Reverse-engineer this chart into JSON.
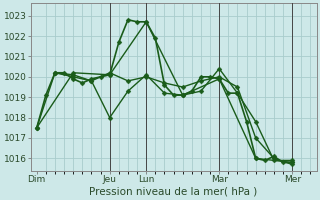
{
  "background_color": "#cde8e8",
  "grid_color": "#a8cccc",
  "line_color": "#1a5c1a",
  "marker_color": "#1a5c1a",
  "xlabel": "Pression niveau de la mer( hPa )",
  "ylim": [
    1015.4,
    1023.6
  ],
  "yticks": [
    1016,
    1017,
    1018,
    1019,
    1020,
    1021,
    1022,
    1023
  ],
  "day_labels": [
    "Dim",
    "Jeu",
    "Lun",
    "Mar",
    "Mer"
  ],
  "day_x": [
    0,
    96,
    144,
    240,
    336
  ],
  "vline_x": [
    96,
    144,
    240,
    336
  ],
  "total_hours": 360,
  "xlim": [
    -8,
    368
  ],
  "lines": [
    {
      "x": [
        0,
        12,
        24,
        36,
        48,
        60,
        72,
        84,
        96,
        108,
        120,
        132,
        144,
        156,
        168,
        180,
        192,
        204,
        216,
        228,
        240,
        252,
        264,
        276,
        288,
        300,
        312,
        324,
        336
      ],
      "y": [
        1017.5,
        1019.1,
        1020.2,
        1020.2,
        1019.9,
        1019.7,
        1019.9,
        1020.0,
        1020.1,
        1021.7,
        1022.8,
        1022.7,
        1022.7,
        1021.9,
        1019.6,
        1019.1,
        1019.1,
        1019.3,
        1020.0,
        1020.0,
        1019.9,
        1019.2,
        1019.2,
        1017.8,
        1016.0,
        1015.9,
        1016.1,
        1015.8,
        1015.8
      ],
      "markersize": 2.5,
      "linewidth": 1.2
    },
    {
      "x": [
        0,
        48,
        96,
        144,
        192,
        240,
        288,
        336
      ],
      "y": [
        1017.5,
        1020.2,
        1020.1,
        1022.7,
        1019.1,
        1019.9,
        1016.0,
        1015.8
      ],
      "markersize": 2.5,
      "linewidth": 1.0
    },
    {
      "x": [
        0,
        24,
        48,
        72,
        96,
        120,
        144,
        168,
        192,
        216,
        240,
        264,
        288,
        312,
        336
      ],
      "y": [
        1017.5,
        1020.2,
        1020.0,
        1019.8,
        1020.2,
        1019.8,
        1020.0,
        1019.7,
        1019.5,
        1019.8,
        1020.0,
        1019.5,
        1017.0,
        1016.0,
        1015.7
      ],
      "markersize": 2.5,
      "linewidth": 1.0
    },
    {
      "x": [
        24,
        48,
        72,
        96,
        120,
        144,
        168,
        192,
        216,
        240,
        264,
        288,
        312,
        336
      ],
      "y": [
        1020.2,
        1020.1,
        1019.8,
        1018.0,
        1019.3,
        1020.1,
        1019.2,
        1019.1,
        1019.3,
        1020.4,
        1019.2,
        1017.8,
        1015.9,
        1015.9
      ],
      "markersize": 2.5,
      "linewidth": 1.0
    }
  ]
}
